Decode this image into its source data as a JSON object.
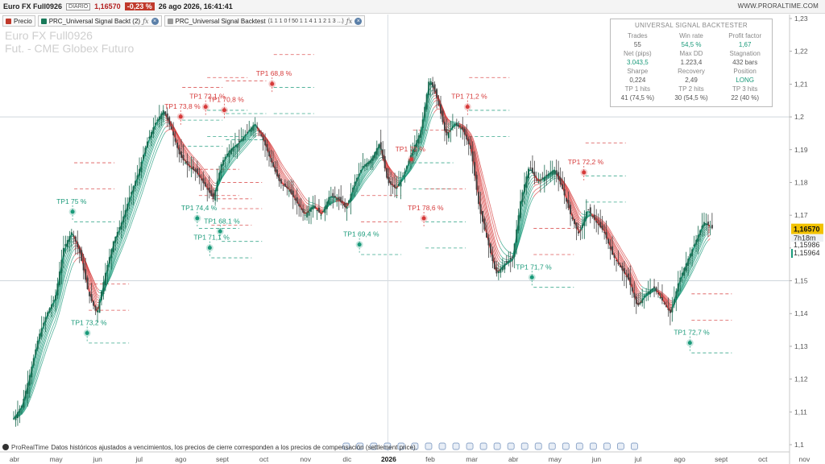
{
  "header": {
    "symbol": "Euro FX Full0926",
    "period": "DIARIO",
    "last_price": "1,16570",
    "change_pct": "-0,23 %",
    "datetime": "26 ago 2026, 16:41:41",
    "site": "WWW.PRORALTIME.COM"
  },
  "tabs": [
    {
      "label": "Precio",
      "color": "#c0392b",
      "has_fx": false
    },
    {
      "label": "PRC_Universal Signal Backt (2)",
      "color": "#1a7a5a",
      "has_fx": true
    },
    {
      "label": "PRC_Universal Signal Backtest",
      "params": "(1 1 1 0 f 50 1 1 4 1 1 2 1 3 ...)",
      "color": "#999999",
      "has_fx": true
    }
  ],
  "watermark": {
    "line1": "Euro FX Full0926",
    "line2": "Fut. - CME Globex  Futuro"
  },
  "panel": {
    "title": "UNIVERSAL SIGNAL BACKTESTER",
    "rows": [
      [
        {
          "label": "Trades",
          "value": "55"
        },
        {
          "label": "Win rate",
          "value": "54,5 %",
          "accent": true
        },
        {
          "label": "Profit factor",
          "value": "1,67",
          "accent": true
        }
      ],
      [
        {
          "label": "Net (pips)",
          "value": "3.043,5",
          "accent": true
        },
        {
          "label": "Max DD",
          "value": "1.223,4"
        },
        {
          "label": "Stagnation",
          "value": "432  bars"
        }
      ],
      [
        {
          "label": "Sharpe",
          "value": "0,224"
        },
        {
          "label": "Recovery",
          "value": "2,49"
        },
        {
          "label": "Position",
          "value": "LONG",
          "accent": true
        }
      ],
      [
        {
          "label": "TP 1 hits",
          "value": "41  (74,5 %)"
        },
        {
          "label": "TP 2 hits",
          "value": "30  (54,5 %)"
        },
        {
          "label": "TP 3 hits",
          "value": "22  (40 %)"
        }
      ]
    ]
  },
  "footer": {
    "brand": "ProRealTime",
    "text": "Datos históricos ajustados a vencimientos, los precios de cierre corresponden a los precios de compensación (settlement price)."
  },
  "price_tags": {
    "current": "1,16570",
    "countdown": "7h18m",
    "level1": "1,15986",
    "level2": "1,15964"
  },
  "colors": {
    "bull": "#1a9a7a",
    "bear": "#d63a3a",
    "candle_up": "#1a6a50",
    "candle_down": "#444444",
    "tag_yellow": "#f2c200"
  },
  "chart_data": {
    "type": "candlestick",
    "y_axis": {
      "range": [
        1.1,
        1.23
      ],
      "ticks": [
        "1,23",
        "1,22",
        "1,21",
        "1,2",
        "1,19",
        "1,18",
        "1,17",
        "1,16",
        "1,15",
        "1,14",
        "1,13",
        "1,12",
        "1,11",
        "1,1"
      ]
    },
    "x_axis": {
      "labels": [
        "abr",
        "may",
        "jun",
        "jul",
        "ago",
        "sept",
        "oct",
        "nov",
        "dic",
        "2026",
        "feb",
        "mar",
        "abr",
        "may",
        "jun",
        "jul",
        "ago",
        "sept",
        "oct",
        "nov"
      ]
    },
    "close_path": [
      [
        0,
        1.108
      ],
      [
        0.2,
        1.112
      ],
      [
        0.4,
        1.122
      ],
      [
        0.6,
        1.133
      ],
      [
        0.8,
        1.14
      ],
      [
        1.0,
        1.145
      ],
      [
        1.2,
        1.16
      ],
      [
        1.4,
        1.165
      ],
      [
        1.6,
        1.158
      ],
      [
        1.8,
        1.146
      ],
      [
        2.0,
        1.14
      ],
      [
        2.2,
        1.152
      ],
      [
        2.4,
        1.162
      ],
      [
        2.6,
        1.168
      ],
      [
        2.8,
        1.176
      ],
      [
        3.0,
        1.183
      ],
      [
        3.2,
        1.192
      ],
      [
        3.4,
        1.198
      ],
      [
        3.6,
        1.202
      ],
      [
        3.8,
        1.196
      ],
      [
        4.0,
        1.188
      ],
      [
        4.2,
        1.185
      ],
      [
        4.4,
        1.183
      ],
      [
        4.6,
        1.179
      ],
      [
        4.8,
        1.175
      ],
      [
        5.0,
        1.186
      ],
      [
        5.2,
        1.19
      ],
      [
        5.4,
        1.192
      ],
      [
        5.6,
        1.195
      ],
      [
        5.8,
        1.198
      ],
      [
        6.0,
        1.193
      ],
      [
        6.2,
        1.186
      ],
      [
        6.4,
        1.18
      ],
      [
        6.6,
        1.178
      ],
      [
        6.8,
        1.174
      ],
      [
        7.0,
        1.17
      ],
      [
        7.2,
        1.173
      ],
      [
        7.4,
        1.17
      ],
      [
        7.6,
        1.176
      ],
      [
        7.8,
        1.175
      ],
      [
        8.0,
        1.172
      ],
      [
        8.2,
        1.18
      ],
      [
        8.4,
        1.185
      ],
      [
        8.6,
        1.187
      ],
      [
        8.8,
        1.192
      ],
      [
        9.0,
        1.18
      ],
      [
        9.2,
        1.178
      ],
      [
        9.4,
        1.183
      ],
      [
        9.6,
        1.19
      ],
      [
        9.8,
        1.196
      ],
      [
        10.0,
        1.212
      ],
      [
        10.2,
        1.205
      ],
      [
        10.4,
        1.194
      ],
      [
        10.6,
        1.198
      ],
      [
        10.8,
        1.196
      ],
      [
        11.0,
        1.19
      ],
      [
        11.2,
        1.172
      ],
      [
        11.4,
        1.162
      ],
      [
        11.6,
        1.152
      ],
      [
        11.8,
        1.155
      ],
      [
        12.0,
        1.157
      ],
      [
        12.2,
        1.175
      ],
      [
        12.4,
        1.185
      ],
      [
        12.6,
        1.18
      ],
      [
        12.8,
        1.182
      ],
      [
        13.0,
        1.184
      ],
      [
        13.2,
        1.178
      ],
      [
        13.4,
        1.17
      ],
      [
        13.6,
        1.164
      ],
      [
        13.8,
        1.172
      ],
      [
        14.0,
        1.168
      ],
      [
        14.2,
        1.165
      ],
      [
        14.4,
        1.158
      ],
      [
        14.6,
        1.154
      ],
      [
        14.8,
        1.15
      ],
      [
        15.0,
        1.142
      ],
      [
        15.2,
        1.146
      ],
      [
        15.4,
        1.148
      ],
      [
        15.6,
        1.144
      ],
      [
        15.8,
        1.14
      ],
      [
        16.0,
        1.15
      ],
      [
        16.2,
        1.156
      ],
      [
        16.4,
        1.162
      ],
      [
        16.6,
        1.168
      ],
      [
        16.8,
        1.166
      ]
    ],
    "series": [
      {
        "name": "TP1 hits",
        "points": [
          {
            "label": "TP1  75 %",
            "x": 1.3,
            "y": 1.174
          },
          {
            "label": "TP1  73,2 %",
            "x": 1.65,
            "y": 1.137
          },
          {
            "label": "TP1  73,8 %",
            "x": 3.9,
            "y": 1.203
          },
          {
            "label": "TP1  74,4 %",
            "x": 4.3,
            "y": 1.172
          },
          {
            "label": "TP1  72,1 %",
            "x": 4.5,
            "y": 1.206
          },
          {
            "label": "TP1  70,8 %",
            "x": 4.95,
            "y": 1.205
          },
          {
            "label": "TP1  71,1 %",
            "x": 4.6,
            "y": 1.163
          },
          {
            "label": "TP1  68,1 %",
            "x": 4.85,
            "y": 1.168
          },
          {
            "label": "TP1  68,8 %",
            "x": 6.1,
            "y": 1.213
          },
          {
            "label": "TP1  69,4 %",
            "x": 8.2,
            "y": 1.164
          },
          {
            "label": "TP1  70 %",
            "x": 9.45,
            "y": 1.19
          },
          {
            "label": "TP1  78,6 %",
            "x": 9.75,
            "y": 1.172
          },
          {
            "label": "TP1  71,2 %",
            "x": 10.8,
            "y": 1.206
          },
          {
            "label": "TP1  71,7 %",
            "x": 12.35,
            "y": 1.154
          },
          {
            "label": "TP1  72,2 %",
            "x": 13.6,
            "y": 1.186
          },
          {
            "label": "TP1  72,7 %",
            "x": 16.15,
            "y": 1.134
          }
        ]
      }
    ]
  }
}
